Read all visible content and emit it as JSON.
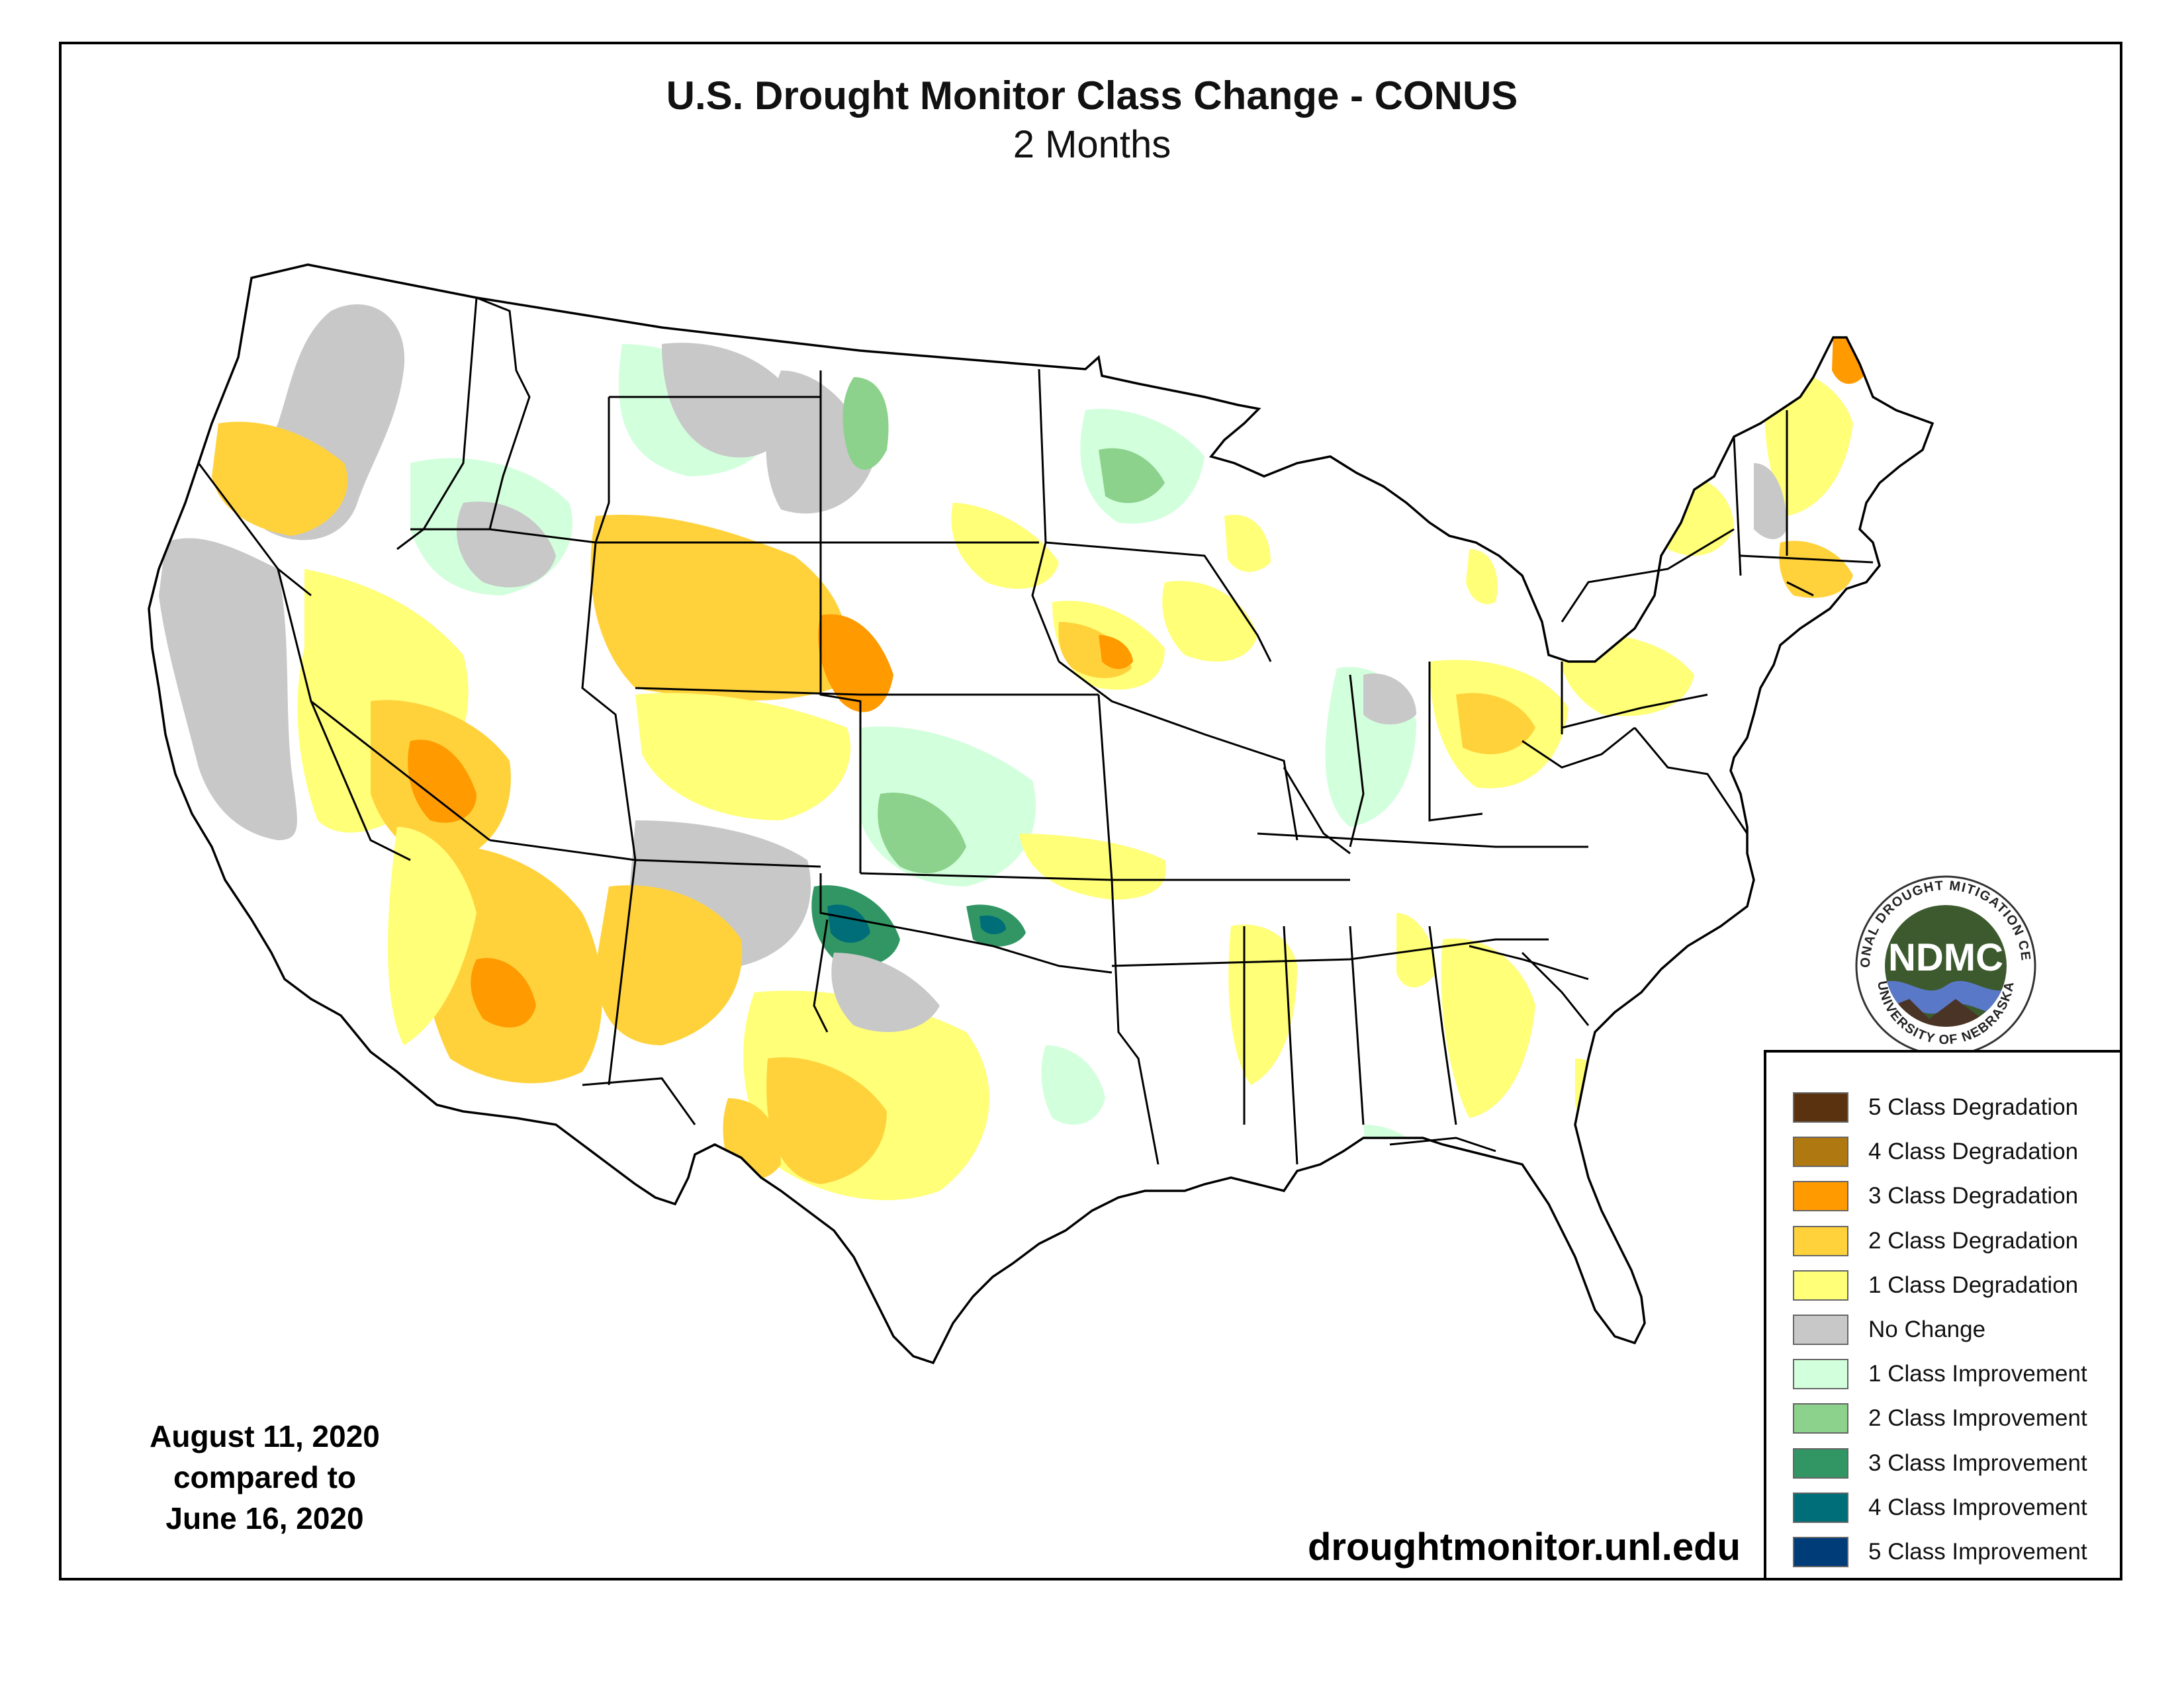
{
  "header": {
    "title": "U.S. Drought Monitor Class Change - CONUS",
    "subtitle": "2 Months"
  },
  "footer": {
    "date_line1": "August 11, 2020",
    "date_line2": "compared to",
    "date_line3": "June 16, 2020",
    "website": "droughtmonitor.unl.edu"
  },
  "logo": {
    "abbrev": "NDMC",
    "ring_top": "NATIONAL DROUGHT MITIGATION CENTER",
    "ring_bottom": "UNIVERSITY OF NEBRASKA",
    "colors": {
      "center": "#3c5a2e",
      "water": "#5a78c8",
      "earth": "#4a3426"
    }
  },
  "legend": {
    "items": [
      {
        "label": "5 Class Degradation",
        "color": "#5a3210"
      },
      {
        "label": "4 Class Degradation",
        "color": "#b07810"
      },
      {
        "label": "3 Class Degradation",
        "color": "#ff9a00"
      },
      {
        "label": "2 Class Degradation",
        "color": "#ffd23c"
      },
      {
        "label": "1 Class Degradation",
        "color": "#ffff78"
      },
      {
        "label": "No Change",
        "color": "#c8c8c8"
      },
      {
        "label": "1 Class Improvement",
        "color": "#d2ffdc"
      },
      {
        "label": "2 Class Improvement",
        "color": "#8cd28c"
      },
      {
        "label": "3 Class Improvement",
        "color": "#329664"
      },
      {
        "label": "4 Class Improvement",
        "color": "#006e78"
      },
      {
        "label": "5 Class Improvement",
        "color": "#003c78"
      }
    ]
  },
  "map_colors": {
    "land": "#ffffff",
    "border": "#000000",
    "degrade1": "#ffff78",
    "degrade2": "#ffd23c",
    "degrade3": "#ff9a00",
    "nochange": "#c8c8c8",
    "improve1": "#d2ffdc",
    "improve2": "#8cd28c",
    "improve3": "#329664",
    "improve4": "#006e78"
  }
}
